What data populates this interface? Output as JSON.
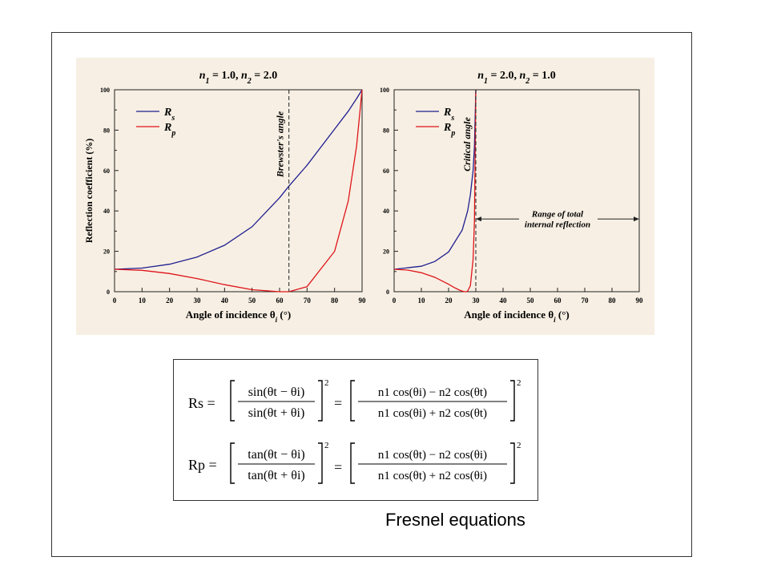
{
  "caption": "Fresnel equations",
  "colors": {
    "panel_bg": "#f7efe3",
    "rs": "#1f1f8f",
    "rp": "#e0141a",
    "marker": "#333333"
  },
  "chart_data": [
    {
      "type": "line",
      "title_parts": [
        "n",
        "1",
        " = 1.0,  ",
        "n",
        "2",
        " = 2.0"
      ],
      "xlabel": "Angle of incidence θi (°)",
      "xlabel_parts": [
        "Angle of incidence θ",
        "i",
        " (°)"
      ],
      "ylabel": "Reflection coefficient (%)",
      "xlim": [
        0,
        90
      ],
      "ylim": [
        0,
        100
      ],
      "x_ticks": [
        "0",
        "10",
        "20",
        "30",
        "40",
        "50",
        "60",
        "70",
        "80",
        "90"
      ],
      "y_ticks": [
        "0",
        "20",
        "40",
        "60",
        "80",
        "100"
      ],
      "legend": [
        {
          "base": "R",
          "sub": "s"
        },
        {
          "base": "R",
          "sub": "p"
        }
      ],
      "grid": false,
      "legend_position": "top-left",
      "marker": {
        "x": 63.4,
        "label": "Brewster's angle"
      },
      "series": [
        {
          "name": "Rs",
          "x": [
            0,
            10,
            20,
            30,
            40,
            50,
            60,
            63.4,
            70,
            80,
            85,
            88,
            90
          ],
          "values": [
            11.1,
            11.7,
            13.6,
            17.2,
            23.0,
            32.2,
            46.5,
            52.3,
            62.6,
            80.5,
            89.4,
            95.6,
            100
          ]
        },
        {
          "name": "Rp",
          "x": [
            0,
            10,
            20,
            30,
            40,
            50,
            60,
            63.4,
            70,
            80,
            85,
            88,
            90
          ],
          "values": [
            11.1,
            10.6,
            9.0,
            6.5,
            3.5,
            1.0,
            0.0,
            0.0,
            2.5,
            20.0,
            45.0,
            72.0,
            100
          ]
        }
      ]
    },
    {
      "type": "line",
      "title_parts": [
        "n",
        "1",
        " = 2.0,  ",
        "n",
        "2",
        " = 1.0"
      ],
      "xlabel": "Angle of incidence θi (°)",
      "xlabel_parts": [
        "Angle of incidence θ",
        "i",
        " (°)"
      ],
      "xlim": [
        0,
        90
      ],
      "ylim": [
        0,
        100
      ],
      "x_ticks": [
        "0",
        "10",
        "20",
        "30",
        "40",
        "50",
        "60",
        "70",
        "80",
        "90"
      ],
      "y_ticks": [
        "0",
        "20",
        "40",
        "60",
        "80",
        "100"
      ],
      "legend": [
        {
          "base": "R",
          "sub": "s"
        },
        {
          "base": "R",
          "sub": "p"
        }
      ],
      "grid": false,
      "legend_position": "top-left",
      "marker": {
        "x": 30,
        "label": "Critical angle"
      },
      "annotation": {
        "lines": [
          "Range of total",
          "internal reflection"
        ],
        "x_range": [
          30,
          90
        ],
        "y": 36
      },
      "series": [
        {
          "name": "Rs",
          "x": [
            0,
            10,
            15,
            20,
            25,
            27,
            28,
            29,
            29.5,
            30
          ],
          "values": [
            11.1,
            12.6,
            15.0,
            19.7,
            30.5,
            40.0,
            48.0,
            60.0,
            72.0,
            100
          ]
        },
        {
          "name": "Rp",
          "x": [
            0,
            5,
            10,
            15,
            20,
            22,
            24,
            25,
            26,
            26.6,
            27,
            28,
            29,
            29.5,
            30
          ],
          "values": [
            11.1,
            10.7,
            9.4,
            7.1,
            3.7,
            2.1,
            0.8,
            0.3,
            0.0,
            0.0,
            0.3,
            3.0,
            16.0,
            35.0,
            100
          ]
        }
      ]
    }
  ],
  "formulas": {
    "rs": {
      "lhs": "Rs =",
      "left_num": "sin(θt − θi)",
      "left_den": "sin(θt + θi)",
      "right_num": "n1 cos(θi) − n2 cos(θt)",
      "right_den": "n1 cos(θi) + n2 cos(θt)",
      "exp": "2"
    },
    "rp": {
      "lhs": "Rp =",
      "left_num": "tan(θt − θi)",
      "left_den": "tan(θt + θi)",
      "right_num": "n1 cos(θt) − n2 cos(θi)",
      "right_den": "n1 cos(θt) + n2 cos(θi)",
      "exp": "2"
    }
  }
}
